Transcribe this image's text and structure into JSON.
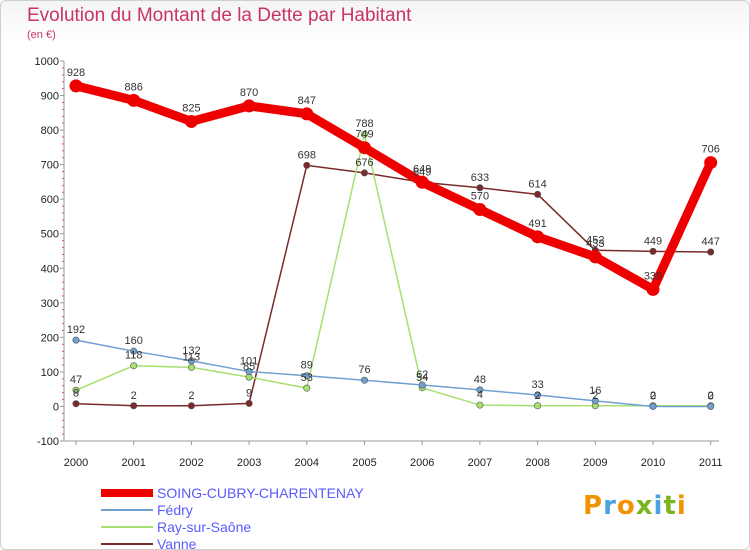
{
  "title": "Evolution du Montant de la Dette par Habitant",
  "subtitle": "(en €)",
  "logo_text": "Proxiti",
  "logo_letter_colors": [
    "#f39200",
    "#4aa3df",
    "#f39200",
    "#7ab51d",
    "#4aa3df",
    "#7ab51d",
    "#f39200"
  ],
  "chart_data": {
    "type": "line",
    "x": [
      "2000",
      "2001",
      "2002",
      "2003",
      "2004",
      "2005",
      "2006",
      "2007",
      "2008",
      "2009",
      "2010",
      "2011"
    ],
    "ylim": [
      -100,
      1000
    ],
    "yticks": [
      "-100",
      "0",
      "100",
      "200",
      "300",
      "400",
      "500",
      "600",
      "700",
      "800",
      "900",
      "1000"
    ],
    "grid": false,
    "legend_position": "bottom-left",
    "series": [
      {
        "name": "SOING-CUBRY-CHARENTENAY",
        "color": "#ee0000",
        "values": [
          928,
          886,
          825,
          870,
          847,
          749,
          649,
          570,
          491,
          433,
          339,
          706
        ],
        "labels": [
          "928",
          "886",
          "825",
          "870",
          "847",
          "749",
          "649",
          "570",
          "491",
          "433",
          "339",
          "706"
        ]
      },
      {
        "name": "Fédry",
        "color": "#6fa0d0",
        "values": [
          192,
          160,
          132,
          101,
          89,
          76,
          62,
          48,
          33,
          16,
          0,
          0
        ],
        "labels": [
          "192",
          "160",
          "132",
          "101",
          "89",
          "76",
          "62",
          "48",
          "33",
          "16",
          "0",
          "0"
        ]
      },
      {
        "name": "Ray-sur-Saône",
        "color": "#a8e070",
        "values": [
          47,
          118,
          113,
          85,
          53,
          788,
          54,
          4,
          2,
          2,
          2,
          2
        ],
        "labels": [
          "47",
          "118",
          "113",
          "85",
          "53",
          "788",
          "54",
          "4",
          "2",
          "2",
          "2",
          "2"
        ]
      },
      {
        "name": "Vanne",
        "color": "#7a2a2a",
        "values": [
          8,
          2,
          2,
          9,
          698,
          676,
          649,
          633,
          614,
          452,
          449,
          447
        ],
        "labels": [
          "8",
          "2",
          "2",
          "9",
          "698",
          "676",
          "649",
          "633",
          "614",
          "452",
          "449",
          "447"
        ]
      }
    ]
  }
}
